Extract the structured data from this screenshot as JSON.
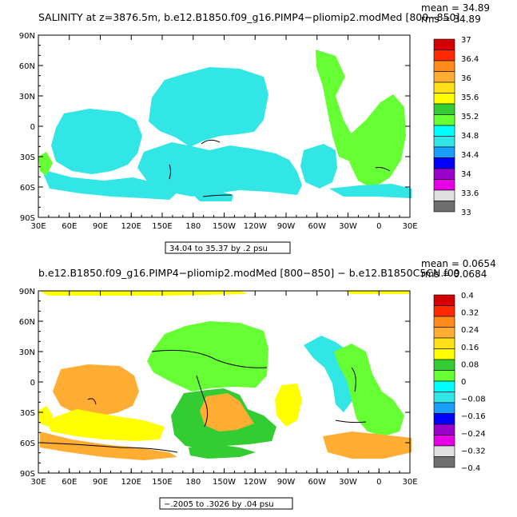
{
  "chart_data": [
    {
      "type": "heatmap",
      "title": "SALINITY at z=3876.5m, b.e12.B1850.f09_g16.PIMP4−pliomip2.modMed [800−850]",
      "stat_mean": "mean = 34.89",
      "stat_rms": "rms = 34.89",
      "range_note": "34.04 to 35.37 by .2 psu",
      "x_ticks": [
        "30E",
        "60E",
        "90E",
        "120E",
        "150E",
        "180",
        "150W",
        "120W",
        "90W",
        "60W",
        "30W",
        "0",
        "30E"
      ],
      "y_ticks": [
        "90N",
        "60N",
        "30N",
        "0",
        "30S",
        "60S",
        "90S"
      ],
      "colorbar": {
        "labels": [
          "37",
          "36.4",
          "36",
          "35.6",
          "35.2",
          "34.8",
          "34.4",
          "34",
          "33.6",
          "33"
        ],
        "colors": [
          "#d40000",
          "#ff2a00",
          "#ff8c1a",
          "#ffad33",
          "#ffe119",
          "#ffff00",
          "#33cc33",
          "#66ff33",
          "#00ffff",
          "#33e6e6",
          "#1a9fff",
          "#0000ff",
          "#9900cc",
          "#e600e6",
          "#e0e0e0",
          "#6e6e6e"
        ]
      }
    },
    {
      "type": "heatmap",
      "title": "b.e12.B1850.f09_g16.PIMP4−pliomip2.modMed [800−850] − b.e12.B1850C5CN.f09",
      "stat_mean": "mean = 0.0654",
      "stat_rms": "rms = 0.0684",
      "range_note": "−.2005 to .3026 by .04 psu",
      "x_ticks": [
        "30E",
        "60E",
        "90E",
        "120E",
        "150E",
        "180",
        "150W",
        "120W",
        "90W",
        "60W",
        "30W",
        "0",
        "30E"
      ],
      "y_ticks": [
        "90N",
        "60N",
        "30N",
        "0",
        "30S",
        "60S",
        "90S"
      ],
      "colorbar": {
        "labels": [
          "0.4",
          "0.32",
          "0.24",
          "0.16",
          "0.08",
          "0",
          "−0.08",
          "−0.16",
          "−0.24",
          "−0.32",
          "−0.4"
        ],
        "colors": [
          "#d40000",
          "#ff2a00",
          "#ff8c1a",
          "#ffad33",
          "#ffe119",
          "#ffff00",
          "#33cc33",
          "#66ff33",
          "#00ffff",
          "#33e6e6",
          "#1a9fff",
          "#0000ff",
          "#9900cc",
          "#e600e6",
          "#e0e0e0",
          "#6e6e6e"
        ]
      }
    }
  ]
}
